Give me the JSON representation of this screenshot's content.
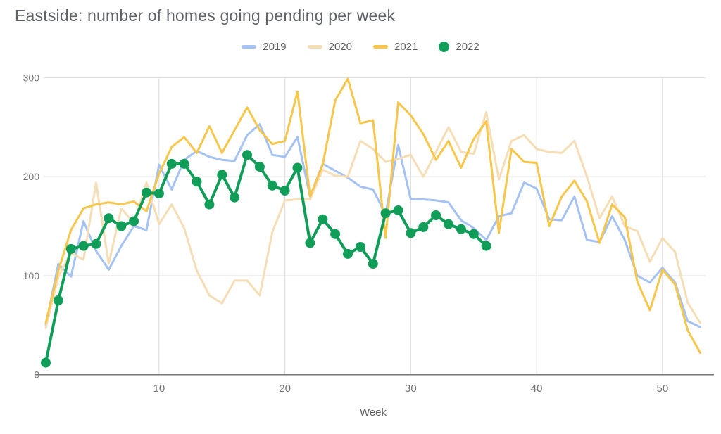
{
  "title": "Eastside: number of homes going pending per week",
  "legend": [
    {
      "label": "2019",
      "color": "#a4c2f4",
      "marker": "line"
    },
    {
      "label": "2020",
      "color": "#f5ddb5",
      "marker": "line"
    },
    {
      "label": "2021",
      "color": "#f7c64a",
      "marker": "line"
    },
    {
      "label": "2022",
      "color": "#0f9d58",
      "marker": "dot"
    }
  ],
  "axis": {
    "x_label": "Week",
    "x_ticks": [
      10,
      20,
      30,
      40,
      50
    ],
    "y_ticks": [
      0,
      100,
      200,
      300
    ]
  },
  "chart_data": {
    "type": "line",
    "title": "Eastside: number of homes going pending per week",
    "xlabel": "Week",
    "ylabel": "",
    "xlim": [
      1,
      53
    ],
    "ylim": [
      0,
      300
    ],
    "grid": true,
    "legend_position": "top-center",
    "x_ticks": [
      10,
      20,
      30,
      40,
      50
    ],
    "y_ticks": [
      0,
      100,
      200,
      300
    ],
    "x": "week number 1-53",
    "colors": {
      "grid_v": "#dadce0",
      "grid_h": "#e3e3e3",
      "baseline": "#757575",
      "tick_text": "#757575"
    },
    "series": [
      {
        "name": "2019",
        "color": "#a4c2f4",
        "width": 3,
        "point_radius": 0,
        "values": [
          50,
          112,
          99,
          155,
          125,
          106,
          130,
          150,
          146,
          212,
          187,
          217,
          226,
          220,
          217,
          216,
          242,
          253,
          222,
          220,
          240,
          180,
          213,
          206,
          199,
          190,
          187,
          162,
          232,
          177,
          177,
          176,
          174,
          156,
          148,
          136,
          160,
          163,
          194,
          188,
          157,
          156,
          180,
          136,
          134,
          160,
          136,
          100,
          93,
          108,
          93,
          54,
          48
        ]
      },
      {
        "name": "2020",
        "color": "#f5ddb5",
        "width": 3,
        "point_radius": 0,
        "values": [
          47,
          99,
          123,
          116,
          194,
          112,
          168,
          153,
          194,
          152,
          172,
          148,
          105,
          80,
          72,
          95,
          95,
          80,
          144,
          176,
          177,
          177,
          207,
          201,
          200,
          236,
          228,
          215,
          218,
          222,
          200,
          225,
          250,
          225,
          223,
          265,
          197,
          236,
          242,
          228,
          225,
          224,
          236,
          200,
          158,
          180,
          150,
          145,
          114,
          138,
          124,
          73,
          52
        ]
      },
      {
        "name": "2021",
        "color": "#f7c64a",
        "width": 3,
        "point_radius": 0,
        "values": [
          52,
          105,
          146,
          168,
          172,
          174,
          172,
          175,
          165,
          203,
          230,
          240,
          224,
          251,
          224,
          247,
          270,
          247,
          233,
          236,
          286,
          180,
          212,
          277,
          299,
          254,
          257,
          138,
          275,
          262,
          243,
          217,
          236,
          209,
          238,
          256,
          143,
          228,
          215,
          214,
          150,
          180,
          196,
          175,
          133,
          172,
          159,
          94,
          65,
          106,
          91,
          45,
          22
        ]
      },
      {
        "name": "2022",
        "color": "#0f9d58",
        "width": 4,
        "point_radius": 7,
        "values": [
          12,
          75,
          127,
          130,
          132,
          158,
          150,
          155,
          184,
          183,
          213,
          213,
          195,
          172,
          202,
          179,
          222,
          210,
          191,
          186,
          209,
          133,
          157,
          142,
          122,
          129,
          112,
          163,
          166,
          143,
          149,
          161,
          152,
          147,
          142,
          130
        ]
      }
    ]
  }
}
